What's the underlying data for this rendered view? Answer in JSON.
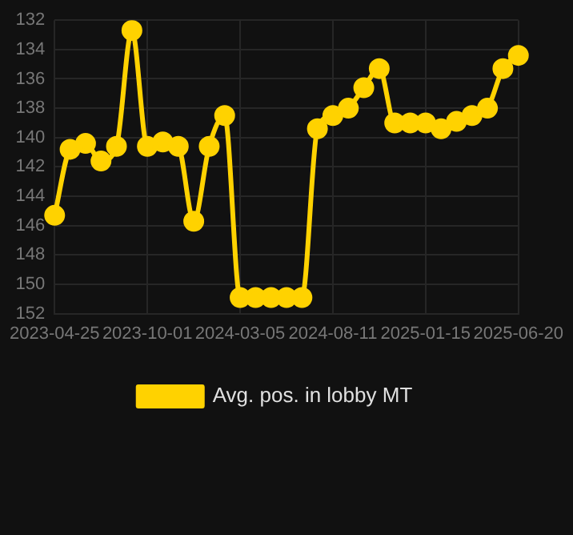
{
  "chart_data": {
    "type": "line",
    "categories": [
      "2023-04-25",
      null,
      null,
      null,
      null,
      null,
      "2023-10-01",
      null,
      null,
      null,
      null,
      null,
      "2024-03-05",
      null,
      null,
      null,
      null,
      null,
      "2024-08-11",
      null,
      null,
      null,
      null,
      null,
      "2025-01-15",
      null,
      null,
      null,
      null,
      null,
      "2025-06-20"
    ],
    "series": [
      {
        "name": "Avg. pos. in lobby MT",
        "color": "#ffd200",
        "values": [
          145.3,
          140.8,
          140.4,
          141.6,
          140.6,
          132.7,
          140.6,
          140.3,
          140.6,
          145.7,
          140.6,
          138.5,
          150.9,
          150.9,
          150.9,
          150.9,
          150.9,
          139.4,
          138.5,
          138.0,
          136.6,
          135.3,
          139.0,
          139.0,
          139.0,
          139.4,
          138.9,
          138.5,
          138.0,
          135.3,
          134.4
        ]
      }
    ],
    "ylim": [
      152,
      132
    ],
    "yticks": [
      132,
      134,
      136,
      138,
      140,
      142,
      144,
      146,
      148,
      150,
      152
    ],
    "grid": true,
    "legend": "bottom",
    "marker": "circle",
    "line_style": "solid"
  }
}
